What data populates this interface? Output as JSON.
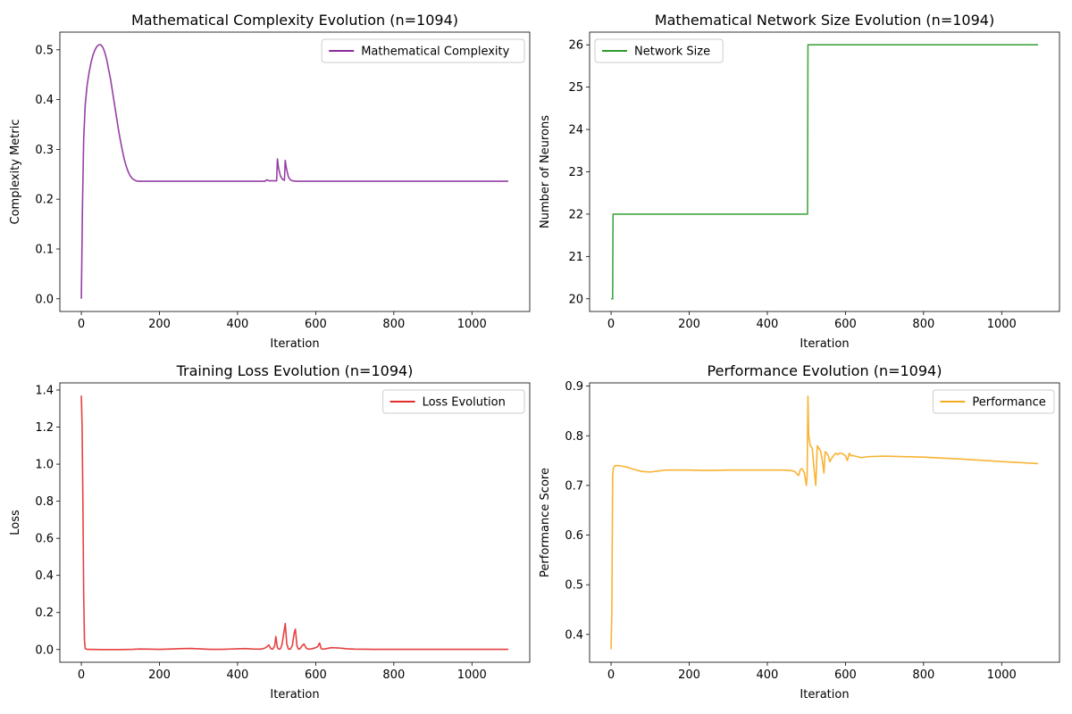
{
  "chart_data": [
    {
      "type": "line",
      "title": "Mathematical Complexity Evolution (n=1094)",
      "xlabel": "Iteration",
      "ylabel": "Complexity Metric",
      "xlim": [
        -55,
        1148
      ],
      "ylim": [
        -0.0255,
        0.5355
      ],
      "xticks": [
        0,
        200,
        400,
        600,
        800,
        1000
      ],
      "yticks": [
        0.0,
        0.1,
        0.2,
        0.3,
        0.4,
        0.5
      ],
      "ytick_labels": [
        "0.0",
        "0.1",
        "0.2",
        "0.3",
        "0.4",
        "0.5"
      ],
      "legend": "upper right",
      "series": [
        {
          "name": "Mathematical Complexity",
          "color": "#8b2a9b",
          "x": [
            0,
            3,
            6,
            10,
            15,
            20,
            25,
            30,
            35,
            40,
            45,
            50,
            55,
            60,
            65,
            70,
            75,
            80,
            85,
            90,
            95,
            100,
            105,
            110,
            115,
            120,
            125,
            130,
            135,
            140,
            145,
            150,
            200,
            300,
            400,
            470,
            475,
            480,
            495,
            500,
            502,
            505,
            510,
            515,
            520,
            522,
            525,
            530,
            535,
            540,
            550,
            560,
            600,
            700,
            800,
            900,
            1000,
            1093
          ],
          "y": [
            0.0,
            0.19,
            0.32,
            0.39,
            0.43,
            0.455,
            0.475,
            0.49,
            0.5,
            0.507,
            0.51,
            0.51,
            0.505,
            0.495,
            0.48,
            0.46,
            0.44,
            0.415,
            0.39,
            0.365,
            0.34,
            0.318,
            0.298,
            0.28,
            0.266,
            0.255,
            0.247,
            0.242,
            0.239,
            0.237,
            0.236,
            0.236,
            0.236,
            0.236,
            0.236,
            0.236,
            0.239,
            0.237,
            0.237,
            0.237,
            0.281,
            0.262,
            0.246,
            0.24,
            0.238,
            0.278,
            0.262,
            0.245,
            0.239,
            0.237,
            0.236,
            0.236,
            0.236,
            0.236,
            0.236,
            0.236,
            0.236,
            0.236
          ]
        }
      ]
    },
    {
      "type": "line",
      "title": "Mathematical Network Size Evolution (n=1094)",
      "xlabel": "Iteration",
      "ylabel": "Number of Neurons",
      "xlim": [
        -55,
        1148
      ],
      "ylim": [
        19.7,
        26.3
      ],
      "xticks": [
        0,
        200,
        400,
        600,
        800,
        1000
      ],
      "yticks": [
        20,
        21,
        22,
        23,
        24,
        25,
        26
      ],
      "ytick_labels": [
        "20",
        "21",
        "22",
        "23",
        "24",
        "25",
        "26"
      ],
      "legend": "upper left",
      "series": [
        {
          "name": "Network Size",
          "color": "#2e9b2e",
          "x": [
            0,
            4,
            5,
            503,
            504,
            1093
          ],
          "y": [
            20,
            20,
            22,
            22,
            26,
            26
          ]
        }
      ]
    },
    {
      "type": "line",
      "title": "Training Loss Evolution (n=1094)",
      "xlabel": "Iteration",
      "ylabel": "Loss",
      "xlim": [
        -55,
        1148
      ],
      "ylim": [
        -0.0685,
        1.4385
      ],
      "xticks": [
        0,
        200,
        400,
        600,
        800,
        1000
      ],
      "yticks": [
        0.0,
        0.2,
        0.4,
        0.6,
        0.8,
        1.0,
        1.2,
        1.4
      ],
      "ytick_labels": [
        "0.0",
        "0.2",
        "0.4",
        "0.6",
        "0.8",
        "1.0",
        "1.2",
        "1.4"
      ],
      "legend": "upper right",
      "series": [
        {
          "name": "Loss Evolution",
          "color": "#e32b2b",
          "x": [
            0,
            2,
            4,
            6,
            8,
            10,
            15,
            50,
            100,
            130,
            150,
            170,
            200,
            230,
            260,
            280,
            300,
            330,
            360,
            400,
            420,
            440,
            460,
            470,
            475,
            480,
            485,
            490,
            495,
            498,
            502,
            506,
            510,
            514,
            518,
            522,
            526,
            530,
            535,
            540,
            545,
            548,
            552,
            556,
            560,
            565,
            570,
            575,
            580,
            590,
            600,
            605,
            610,
            614,
            618,
            625,
            640,
            660,
            680,
            700,
            750,
            800,
            900,
            1000,
            1093
          ],
          "y": [
            1.37,
            1.2,
            0.8,
            0.3,
            0.05,
            0.005,
            0.001,
            0.0,
            0.0,
            0.001,
            0.003,
            0.002,
            0.001,
            0.003,
            0.005,
            0.006,
            0.004,
            0.001,
            0.001,
            0.004,
            0.005,
            0.003,
            0.002,
            0.008,
            0.015,
            0.025,
            0.005,
            0.002,
            0.02,
            0.07,
            0.01,
            0.002,
            0.005,
            0.03,
            0.085,
            0.14,
            0.03,
            0.003,
            0.002,
            0.02,
            0.09,
            0.11,
            0.02,
            0.002,
            0.005,
            0.02,
            0.03,
            0.01,
            0.002,
            0.004,
            0.01,
            0.015,
            0.035,
            0.005,
            0.002,
            0.004,
            0.01,
            0.008,
            0.004,
            0.002,
            0.001,
            0.001,
            0.001,
            0.001,
            0.001
          ]
        }
      ]
    },
    {
      "type": "line",
      "title": "Performance Evolution (n=1094)",
      "xlabel": "Iteration",
      "ylabel": "Performance Score",
      "xlim": [
        -55,
        1148
      ],
      "ylim": [
        0.344,
        0.9065
      ],
      "xticks": [
        0,
        200,
        400,
        600,
        800,
        1000
      ],
      "yticks": [
        0.4,
        0.5,
        0.6,
        0.7,
        0.8,
        0.9
      ],
      "ytick_labels": [
        "0.4",
        "0.5",
        "0.6",
        "0.7",
        "0.8",
        "0.9"
      ],
      "legend": "upper right",
      "series": [
        {
          "name": "Performance",
          "color": "#f7ab1e",
          "x": [
            0,
            2,
            4,
            6,
            10,
            20,
            40,
            60,
            80,
            100,
            120,
            140,
            160,
            200,
            250,
            300,
            350,
            400,
            440,
            460,
            470,
            480,
            485,
            490,
            495,
            500,
            502,
            504,
            506,
            510,
            515,
            520,
            524,
            528,
            532,
            536,
            540,
            545,
            548,
            552,
            556,
            560,
            565,
            570,
            575,
            580,
            585,
            590,
            600,
            605,
            610,
            614,
            620,
            640,
            660,
            700,
            800,
            900,
            1000,
            1093
          ],
          "y": [
            0.37,
            0.45,
            0.72,
            0.735,
            0.74,
            0.74,
            0.737,
            0.732,
            0.728,
            0.727,
            0.729,
            0.731,
            0.731,
            0.731,
            0.73,
            0.731,
            0.731,
            0.731,
            0.731,
            0.73,
            0.728,
            0.72,
            0.733,
            0.733,
            0.725,
            0.7,
            0.72,
            0.88,
            0.8,
            0.78,
            0.775,
            0.73,
            0.7,
            0.78,
            0.775,
            0.77,
            0.755,
            0.725,
            0.768,
            0.765,
            0.76,
            0.748,
            0.755,
            0.76,
            0.765,
            0.762,
            0.765,
            0.765,
            0.76,
            0.75,
            0.765,
            0.76,
            0.76,
            0.756,
            0.758,
            0.759,
            0.757,
            0.753,
            0.748,
            0.744
          ]
        }
      ]
    }
  ]
}
